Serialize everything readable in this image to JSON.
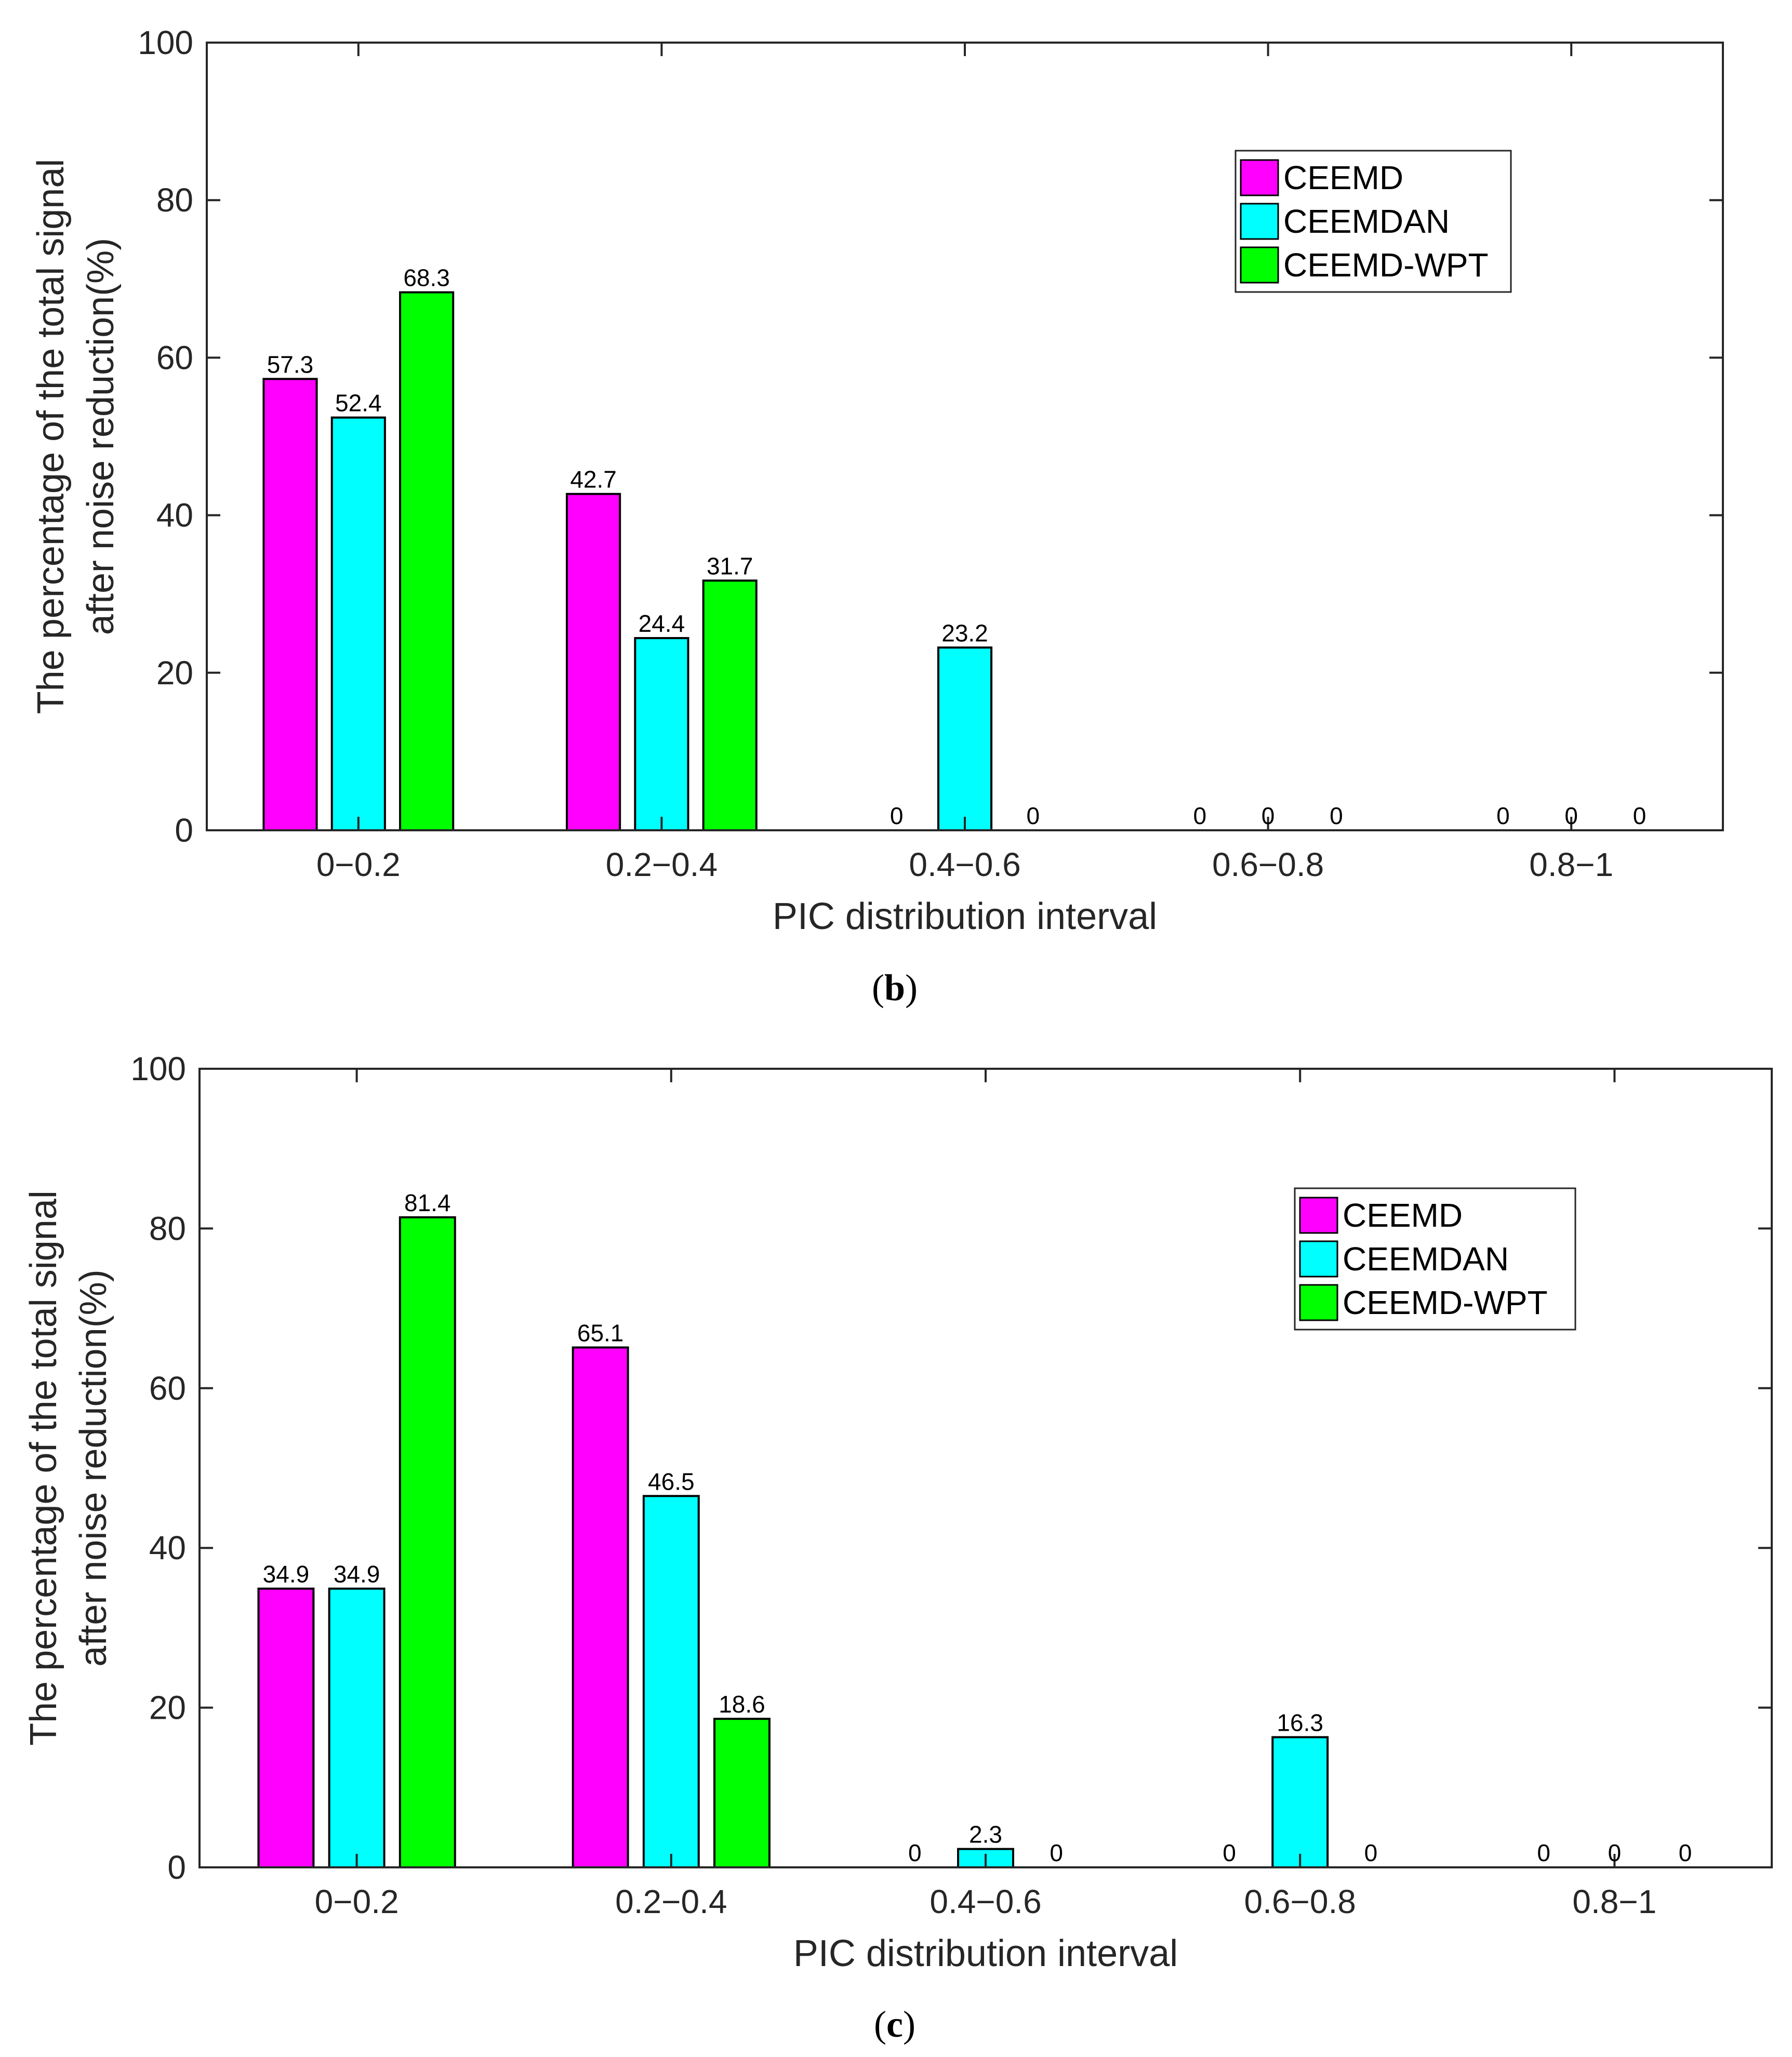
{
  "chart_data": [
    {
      "type": "bar",
      "caption_letter": "b",
      "categories": [
        "0−0.2",
        "0.2−0.4",
        "0.4−0.6",
        "0.6−0.8",
        "0.8−1"
      ],
      "series": [
        {
          "name": "CEEMD",
          "color": "#ff00ff",
          "values": [
            57.3,
            42.7,
            0,
            0,
            0
          ]
        },
        {
          "name": "CEEMDAN",
          "color": "#00ffff",
          "values": [
            52.4,
            24.4,
            23.2,
            0,
            0
          ]
        },
        {
          "name": "CEEMD-WPT",
          "color": "#00ff00",
          "values": [
            68.3,
            31.7,
            0,
            0,
            0
          ]
        }
      ],
      "xlabel": "PIC distribution interval",
      "ylabel_lines": [
        "The percentage of the total signal",
        "after noise reduction(%)"
      ],
      "ylim": [
        0,
        100
      ],
      "yticks": [
        0,
        20,
        40,
        60,
        80,
        100
      ],
      "legend": "upper-right"
    },
    {
      "type": "bar",
      "caption_letter": "c",
      "categories": [
        "0−0.2",
        "0.2−0.4",
        "0.4−0.6",
        "0.6−0.8",
        "0.8−1"
      ],
      "series": [
        {
          "name": "CEEMD",
          "color": "#ff00ff",
          "values": [
            34.9,
            65.1,
            0,
            0,
            0
          ]
        },
        {
          "name": "CEEMDAN",
          "color": "#00ffff",
          "values": [
            34.9,
            46.5,
            2.3,
            16.3,
            0
          ]
        },
        {
          "name": "CEEMD-WPT",
          "color": "#00ff00",
          "values": [
            81.4,
            18.6,
            0,
            0,
            0
          ]
        }
      ],
      "xlabel": "PIC distribution interval",
      "ylabel_lines": [
        "The percentage of the total signal",
        "after noise reduction(%)"
      ],
      "ylim": [
        0,
        100
      ],
      "yticks": [
        0,
        20,
        40,
        60,
        80,
        100
      ],
      "legend": "upper-right"
    }
  ]
}
